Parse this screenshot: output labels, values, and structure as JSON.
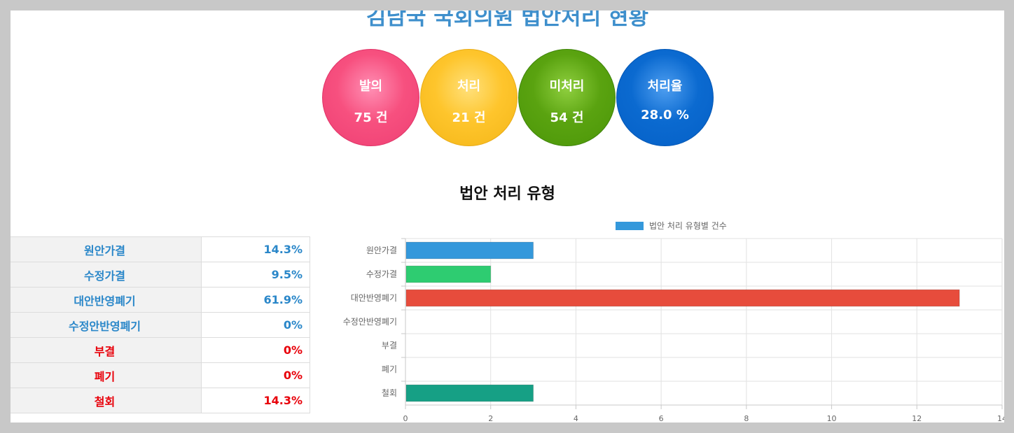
{
  "page": {
    "title": "김남국 국회의원 법안처리 현황",
    "section_title": "법안 처리 유형"
  },
  "summary": [
    {
      "label": "발의",
      "value": "75 건",
      "color": "#f7507f"
    },
    {
      "label": "처리",
      "value": "21 건",
      "color": "#fec52c"
    },
    {
      "label": "미처리",
      "value": "54 건",
      "color": "#5aa310"
    },
    {
      "label": "처리율",
      "value": "28.0 %",
      "color": "#0b6ad0"
    }
  ],
  "table": [
    {
      "name": "원안가결",
      "value": "14.3%",
      "tone": "blue"
    },
    {
      "name": "수정가결",
      "value": "9.5%",
      "tone": "blue"
    },
    {
      "name": "대안반영폐기",
      "value": "61.9%",
      "tone": "blue"
    },
    {
      "name": "수정안반영폐기",
      "value": "0%",
      "tone": "blue"
    },
    {
      "name": "부결",
      "value": "0%",
      "tone": "red"
    },
    {
      "name": "폐기",
      "value": "0%",
      "tone": "red"
    },
    {
      "name": "철회",
      "value": "14.3%",
      "tone": "red"
    }
  ],
  "chart_data": {
    "type": "bar",
    "orientation": "horizontal",
    "categories": [
      "원안가결",
      "수정가결",
      "대안반영폐기",
      "수정안반영폐기",
      "부결",
      "폐기",
      "철회"
    ],
    "series": [
      {
        "name": "법안 처리 유형별 건수",
        "values": [
          3,
          2,
          13,
          0,
          0,
          0,
          3
        ],
        "colors": [
          "#3498db",
          "#2ecc71",
          "#e74c3c",
          "#9b59b6",
          "#f1c40f",
          "#e67e22",
          "#16a085"
        ]
      }
    ],
    "legend_color": "#3498db",
    "xlim": [
      0,
      14
    ],
    "xticks": [
      0,
      2,
      4,
      6,
      8,
      10,
      12,
      14
    ],
    "grid": true,
    "legend_position": "top"
  }
}
